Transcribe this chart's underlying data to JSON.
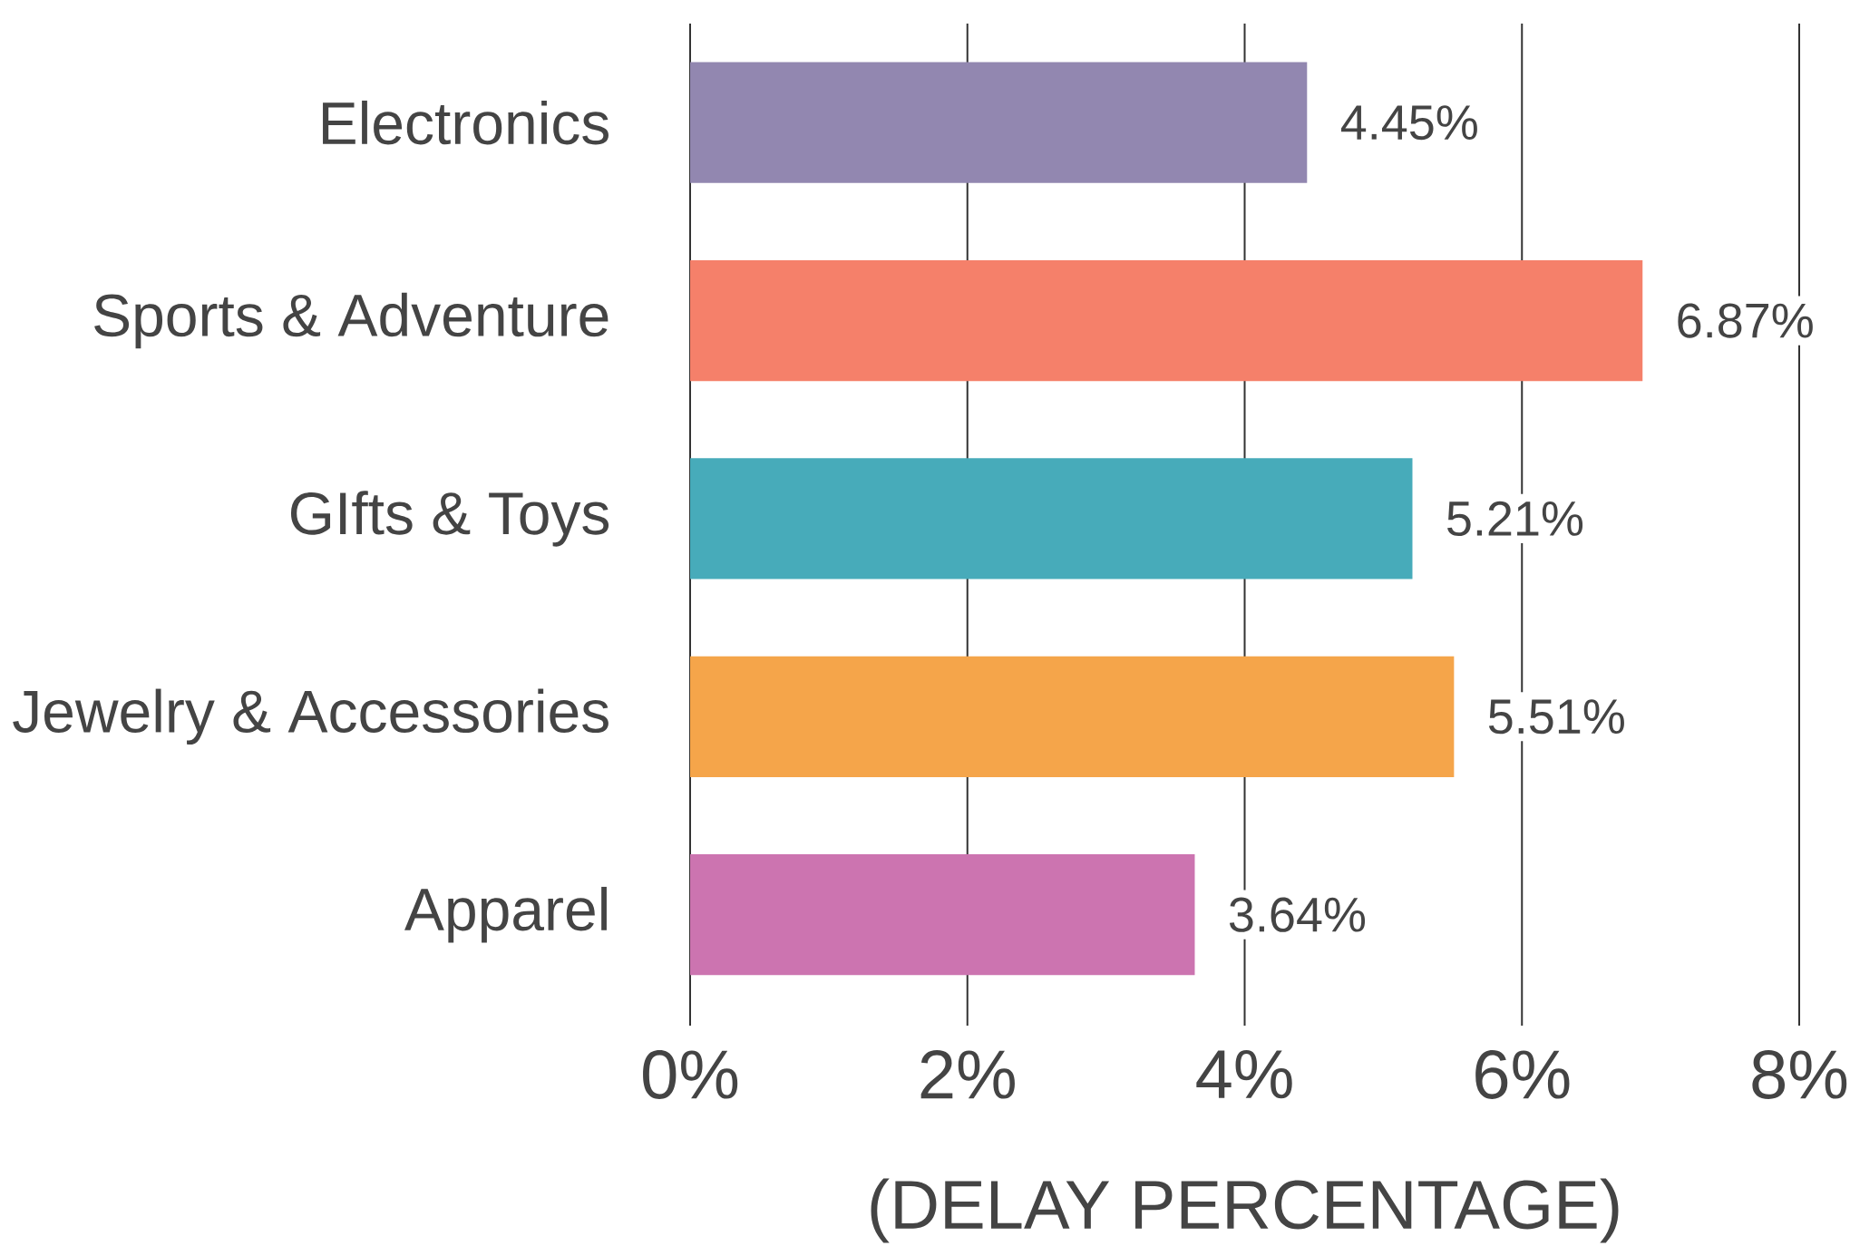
{
  "chart_data": {
    "type": "bar",
    "orientation": "horizontal",
    "xlabel": "(DELAY PERCENTAGE)",
    "categories": [
      "Electronics",
      "Sports & Adventure",
      "GIfts & Toys",
      "Jewelry & Accessories",
      "Apparel"
    ],
    "values": [
      4.45,
      6.87,
      5.21,
      5.51,
      3.64
    ],
    "colors": [
      "#9287b0",
      "#f5806a",
      "#47abba",
      "#f5a54a",
      "#cc74b0"
    ],
    "value_labels": [
      "4.45%",
      "6.87%",
      "5.21%",
      "5.51%",
      "3.64%"
    ],
    "xlim": [
      0,
      8
    ],
    "xticks": [
      {
        "value": 0,
        "label": "0%"
      },
      {
        "value": 2,
        "label": "2%"
      },
      {
        "value": 4,
        "label": "4%"
      },
      {
        "value": 6,
        "label": "6%"
      },
      {
        "value": 8,
        "label": "8%"
      }
    ],
    "grid": "x"
  }
}
